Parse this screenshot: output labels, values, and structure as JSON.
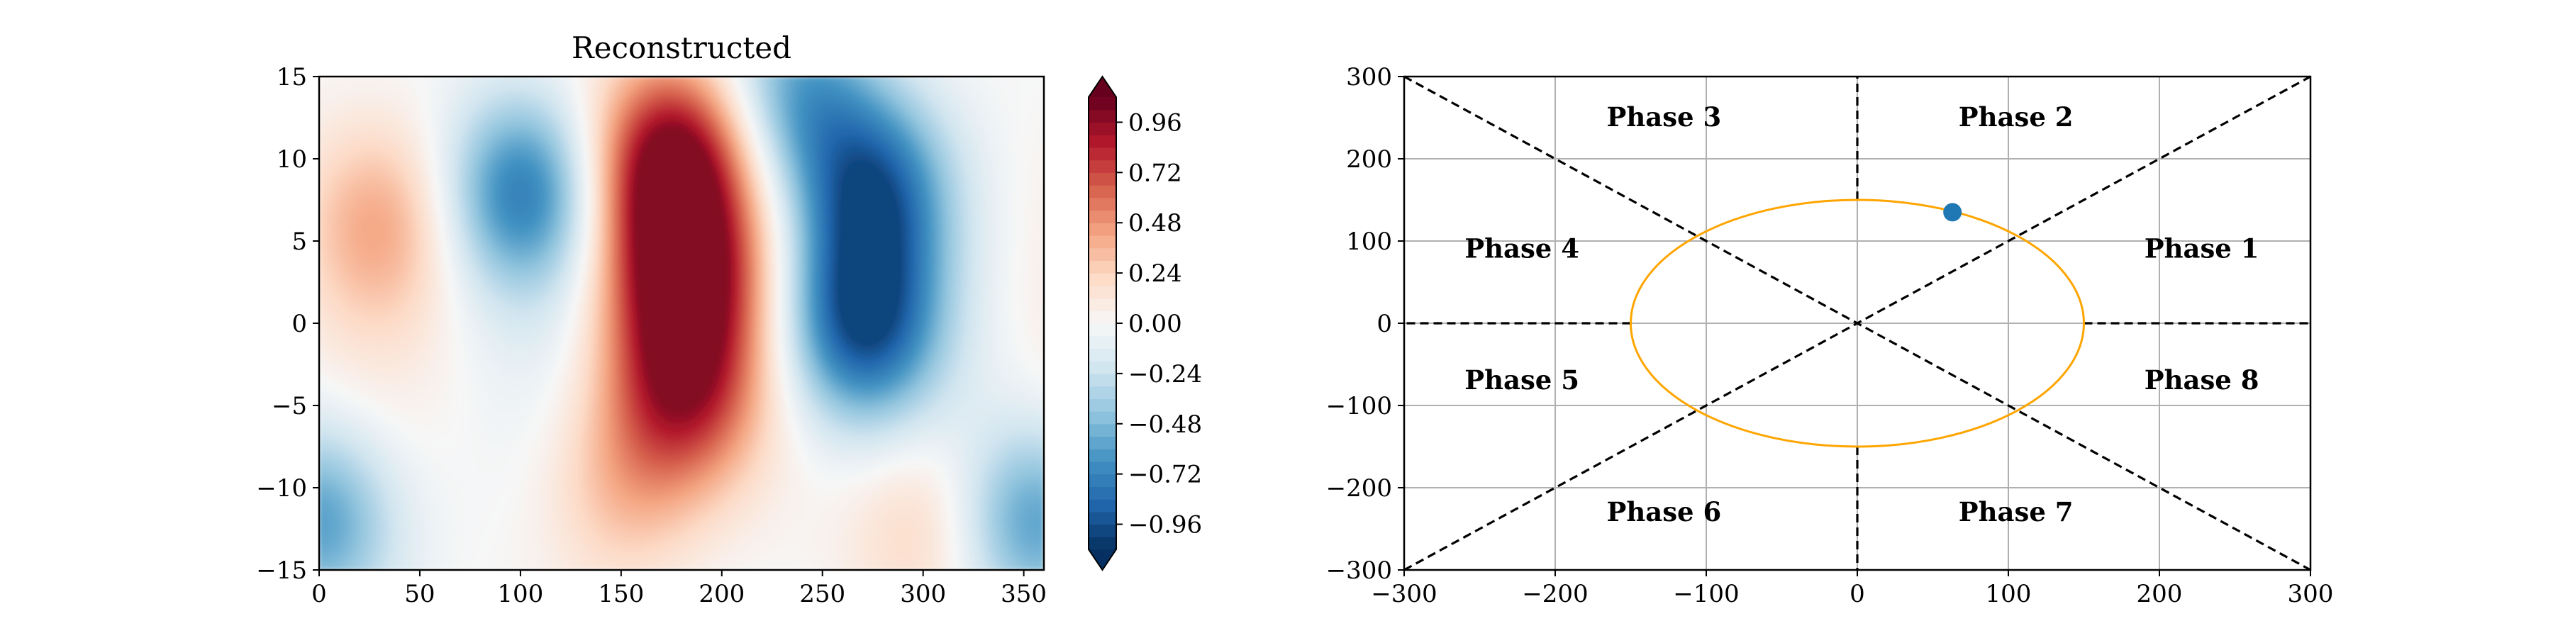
{
  "chart_data": [
    {
      "type": "heatmap",
      "title": "Reconstructed",
      "xlim": [
        0,
        360
      ],
      "ylim": [
        -15,
        15
      ],
      "x_ticks": [
        "0",
        "50",
        "100",
        "150",
        "200",
        "250",
        "300",
        "350"
      ],
      "y_ticks": [
        "15",
        "10",
        "5",
        "0",
        "−5",
        "−10",
        "−15"
      ],
      "colorbar": {
        "colormap": "RdBu_r",
        "range": [
          -1.08,
          1.08
        ],
        "ticks": [
          "0.96",
          "0.72",
          "0.48",
          "0.24",
          "0.00",
          "−0.24",
          "−0.48",
          "−0.72",
          "−0.96"
        ],
        "extend": "both"
      },
      "features": [
        {
          "x": 175,
          "y": 10,
          "value": 1.0
        },
        {
          "x": 180,
          "y": 3,
          "value": 0.95
        },
        {
          "x": 180,
          "y": -4,
          "value": 0.75
        },
        {
          "x": 150,
          "y": -10,
          "value": 0.3
        },
        {
          "x": 100,
          "y": 8,
          "value": -0.7
        },
        {
          "x": 270,
          "y": 0,
          "value": -0.9
        },
        {
          "x": 275,
          "y": 8,
          "value": -0.8
        },
        {
          "x": 30,
          "y": 6,
          "value": 0.35
        },
        {
          "x": 0,
          "y": -12,
          "value": -0.6
        },
        {
          "x": 355,
          "y": -12,
          "value": -0.6
        },
        {
          "x": 300,
          "y": -12,
          "value": 0.25
        },
        {
          "x": 240,
          "y": 14,
          "value": -0.55
        }
      ]
    },
    {
      "type": "scatter",
      "xlim": [
        -300,
        300
      ],
      "ylim": [
        -300,
        300
      ],
      "x_ticks": [
        "−300",
        "−200",
        "−100",
        "0",
        "100",
        "200",
        "300"
      ],
      "y_ticks": [
        "300",
        "200",
        "100",
        "0",
        "−100",
        "−200",
        "−300"
      ],
      "grid": true,
      "points": [
        {
          "x": 63,
          "y": 135,
          "color": "#1f77b4"
        }
      ],
      "circle": {
        "radius": 150,
        "color": "#ffa500"
      },
      "phases": [
        {
          "label": "Phase 1",
          "x": 228,
          "y": 90
        },
        {
          "label": "Phase 2",
          "x": 105,
          "y": 250
        },
        {
          "label": "Phase 3",
          "x": -128,
          "y": 250
        },
        {
          "label": "Phase 4",
          "x": -222,
          "y": 90
        },
        {
          "label": "Phase 5",
          "x": -222,
          "y": -70
        },
        {
          "label": "Phase 6",
          "x": -128,
          "y": -230
        },
        {
          "label": "Phase 7",
          "x": 105,
          "y": -230
        },
        {
          "label": "Phase 8",
          "x": 228,
          "y": -70
        }
      ]
    }
  ]
}
